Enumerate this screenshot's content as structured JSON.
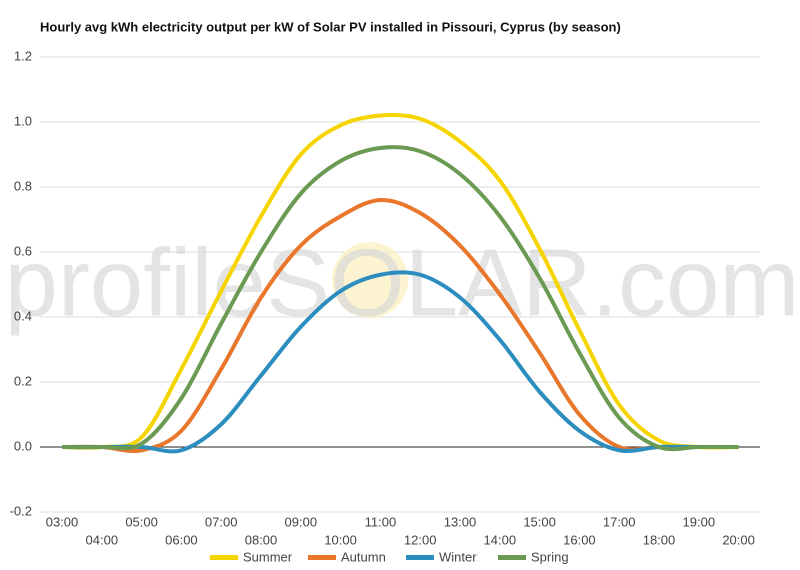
{
  "chart_data": {
    "type": "line",
    "title": "Hourly avg kWh electricity output per kW of Solar PV installed in Pissouri, Cyprus (by season)",
    "watermark": "profileSOLAR.com",
    "categories": [
      "03:00",
      "04:00",
      "05:00",
      "06:00",
      "07:00",
      "08:00",
      "09:00",
      "10:00",
      "11:00",
      "12:00",
      "13:00",
      "14:00",
      "15:00",
      "16:00",
      "17:00",
      "18:00",
      "19:00",
      "20:00"
    ],
    "series": [
      {
        "name": "Summer",
        "color": "#f5d400",
        "values": [
          0,
          0,
          0.03,
          0.24,
          0.48,
          0.71,
          0.9,
          0.99,
          1.02,
          1.01,
          0.94,
          0.82,
          0.61,
          0.36,
          0.13,
          0.02,
          0,
          0
        ]
      },
      {
        "name": "Autumn",
        "color": "#e8762b",
        "values": [
          0,
          0,
          -0.01,
          0.05,
          0.24,
          0.46,
          0.62,
          0.71,
          0.76,
          0.72,
          0.62,
          0.47,
          0.29,
          0.1,
          0,
          0,
          0,
          0
        ]
      },
      {
        "name": "Winter",
        "color": "#2c8ebf",
        "values": [
          0,
          0,
          0,
          -0.01,
          0.07,
          0.22,
          0.37,
          0.48,
          0.53,
          0.53,
          0.46,
          0.33,
          0.17,
          0.05,
          -0.01,
          0,
          0,
          0
        ]
      },
      {
        "name": "Spring",
        "color": "#6b9a52",
        "values": [
          0,
          0,
          0.01,
          0.15,
          0.38,
          0.6,
          0.78,
          0.88,
          0.92,
          0.91,
          0.84,
          0.71,
          0.52,
          0.29,
          0.09,
          0,
          0,
          0
        ]
      }
    ],
    "ylim": [
      -0.2,
      1.2
    ],
    "yticks": [
      {
        "value": -0.2,
        "label": "-0.2"
      },
      {
        "value": 0,
        "label": "0.0"
      },
      0.2,
      0.4,
      0.6,
      0.8,
      {
        "value": 1,
        "label": "1.0"
      },
      1.2
    ],
    "grid": true,
    "legend": "bottom"
  }
}
